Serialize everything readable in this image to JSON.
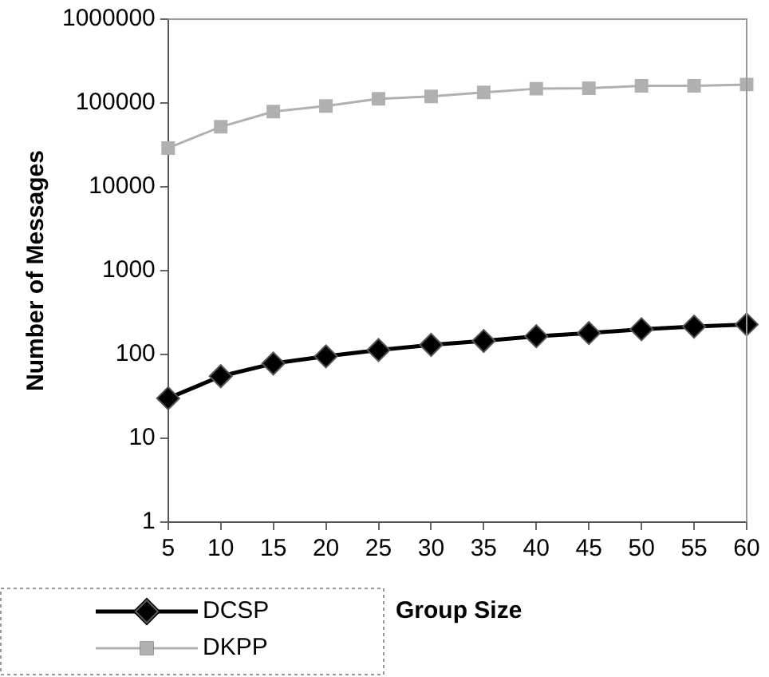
{
  "chart_data": {
    "type": "line",
    "xlabel": "Group Size",
    "ylabel": "Number of Messages",
    "categories": [
      "5",
      "10",
      "15",
      "20",
      "25",
      "30",
      "35",
      "40",
      "45",
      "50",
      "55",
      "60"
    ],
    "series": [
      {
        "name": "DCSP",
        "color": "#000000",
        "marker": "diamond",
        "values": [
          30,
          55,
          78,
          95,
          113,
          130,
          145,
          165,
          180,
          200,
          215,
          228
        ]
      },
      {
        "name": "DKPP",
        "color": "#b0b0b0",
        "marker": "square",
        "values": [
          29000,
          52000,
          79000,
          92000,
          112000,
          120000,
          134000,
          148000,
          150000,
          160000,
          160000,
          166000
        ]
      }
    ],
    "log": "y",
    "ylim": [
      1,
      1000000
    ],
    "yticks": [
      1,
      10,
      100,
      1000,
      10000,
      100000,
      1000000
    ],
    "grid": false,
    "legend": "bottom left",
    "line_style": "solid"
  }
}
